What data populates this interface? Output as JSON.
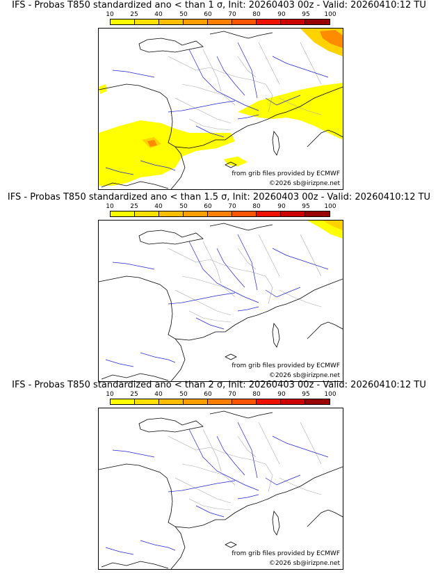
{
  "scale": {
    "labels": [
      "10",
      "25",
      "40",
      "50",
      "60",
      "70",
      "80",
      "90",
      "95",
      "100"
    ],
    "colors": [
      "#ffff00",
      "#ffe100",
      "#ffbf00",
      "#ff9f00",
      "#ff7f00",
      "#ff5500",
      "#ee1100",
      "#cc0000",
      "#990000",
      "#660000"
    ]
  },
  "colors": {
    "coast": "#000000",
    "rivers": "#2222cc",
    "borders": "#aaaaaa",
    "prob_low": "#ffff00",
    "prob_mid": "#ffd200",
    "prob_high": "#ff8c00"
  },
  "panels": [
    {
      "title": "IFS - Probas T850  standardized ano < than 1 σ, Init: 20260403 00z - Valid: 20260410:12 TU",
      "source": "from grib files provided by ECMWF",
      "copyright": "©2026 sb@irizpne.net",
      "coverage": "wide"
    },
    {
      "title": "IFS - Probas T850  standardized ano < than 1.5 σ, Init: 20260403 00z - Valid: 20260410:12 TU",
      "source": "from grib files provided by ECMWF",
      "copyright": "©2026 sb@irizpne.net",
      "coverage": "corner"
    },
    {
      "title": "IFS - Probas T850  standardized ano < than 2 σ, Init: 20260403 00z - Valid: 20260410:12 TU",
      "source": "from grib files provided by ECMWF",
      "copyright": "©2026 sb@irizpne.net",
      "coverage": "none"
    }
  ]
}
